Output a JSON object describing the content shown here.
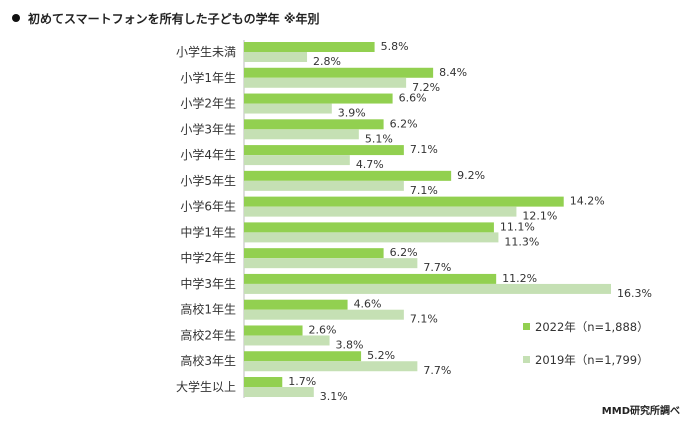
{
  "title": "初めてスマートフォンを所有した子どもの学年 ※年別",
  "source": "MMD研究所調べ",
  "chart_data": {
    "type": "bar",
    "orientation": "horizontal",
    "title": "初めてスマートフォンを所有した子どもの学年 ※年別",
    "categories": [
      "小学生未満",
      "小学1年生",
      "小学2年生",
      "小学3年生",
      "小学4年生",
      "小学5年生",
      "小学6年生",
      "中学1年生",
      "中学2年生",
      "中学3年生",
      "高校1年生",
      "高校2年生",
      "高校3年生",
      "大学生以上"
    ],
    "series": [
      {
        "name": "2022年（n=1,888）",
        "color": "#92d050",
        "values": [
          5.8,
          8.4,
          6.6,
          6.2,
          7.1,
          9.2,
          14.2,
          11.1,
          6.2,
          11.2,
          4.6,
          2.6,
          5.2,
          1.7
        ]
      },
      {
        "name": "2019年（n=1,799）",
        "color": "#c5e0b4",
        "values": [
          2.8,
          7.2,
          3.9,
          5.1,
          4.7,
          7.1,
          12.1,
          11.3,
          7.7,
          16.3,
          7.1,
          3.8,
          7.7,
          3.1
        ]
      }
    ],
    "value_suffix": "%",
    "legend_position": "bottom-right",
    "grid": false,
    "xlim": [
      0,
      16.3
    ]
  }
}
